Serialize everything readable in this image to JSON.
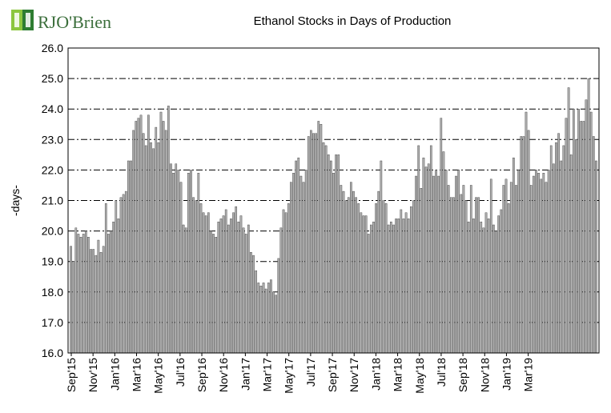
{
  "logo": {
    "text": "RJO'Brien",
    "colors": [
      "#8cc63f",
      "#2e7d32"
    ]
  },
  "chart_data": {
    "type": "bar",
    "title": "Ethanol Stocks in Days of Production",
    "ylabel": "-days-",
    "xlabel": "",
    "ylim": [
      16.0,
      26.0
    ],
    "yticks": [
      "16.0",
      "17.0",
      "18.0",
      "19.0",
      "20.0",
      "21.0",
      "22.0",
      "23.0",
      "24.0",
      "25.0",
      "26.0"
    ],
    "grid": "horizontal dash-dot",
    "bar_color": "#b0b0b0",
    "xticks": [
      "Sep'15",
      "Nov'15",
      "Jan'16",
      "Mar'16",
      "May'16",
      "Jul'16",
      "Sep'16",
      "Nov'16",
      "Jan'17",
      "Mar'17",
      "May'17",
      "Jul'17",
      "Sep'17",
      "Nov'17",
      "Jan'18",
      "Mar'18",
      "May'18",
      "Jul'18",
      "Sep'18",
      "Nov'18",
      "Jan'19",
      "Mar'19"
    ],
    "values": [
      19.5,
      19.0,
      20.1,
      19.9,
      19.8,
      19.9,
      20.0,
      19.8,
      19.4,
      19.4,
      19.2,
      19.7,
      19.3,
      19.5,
      20.9,
      19.9,
      20.0,
      20.3,
      21.0,
      20.4,
      21.1,
      21.2,
      21.3,
      22.3,
      22.3,
      23.3,
      23.6,
      23.7,
      23.8,
      23.2,
      22.8,
      23.8,
      22.9,
      22.7,
      23.4,
      22.9,
      23.9,
      23.6,
      23.3,
      24.1,
      22.2,
      21.9,
      22.2,
      22.0,
      21.6,
      20.2,
      20.1,
      21.9,
      22.0,
      21.1,
      21.0,
      21.9,
      20.9,
      20.6,
      20.5,
      20.6,
      20.0,
      19.9,
      19.8,
      20.3,
      20.4,
      20.5,
      20.7,
      20.2,
      20.4,
      20.6,
      20.8,
      20.3,
      20.5,
      20.1,
      19.9,
      20.2,
      19.3,
      19.2,
      18.7,
      18.3,
      18.2,
      18.3,
      18.1,
      18.3,
      18.4,
      18.0,
      17.9,
      19.1,
      20.1,
      20.7,
      20.6,
      20.9,
      21.6,
      21.9,
      22.3,
      22.4,
      21.8,
      21.6,
      22.0,
      23.1,
      23.3,
      23.2,
      23.2,
      23.6,
      23.5,
      22.9,
      22.8,
      22.5,
      22.3,
      21.9,
      22.5,
      22.5,
      21.5,
      21.3,
      21.0,
      21.1,
      21.6,
      21.3,
      21.1,
      20.9,
      20.6,
      20.5,
      20.5,
      19.9,
      20.2,
      20.3,
      20.9,
      21.3,
      22.3,
      21.0,
      20.9,
      20.2,
      20.3,
      20.2,
      20.4,
      20.4,
      20.7,
      20.4,
      20.6,
      20.4,
      20.8,
      21.0,
      21.8,
      22.8,
      21.4,
      22.4,
      22.1,
      22.2,
      22.8,
      21.8,
      22.0,
      21.8,
      23.7,
      22.6,
      22.0,
      21.5,
      21.1,
      21.1,
      21.8,
      22.0,
      21.2,
      21.5,
      21.0,
      20.3,
      21.5,
      20.4,
      21.1,
      21.1,
      20.3,
      20.1,
      20.6,
      20.4,
      21.7,
      20.2,
      20.0,
      20.5,
      20.7,
      21.5,
      21.7,
      20.9,
      21.6,
      22.4,
      21.5,
      22.0,
      23.1,
      23.1,
      23.9,
      23.3,
      21.5,
      21.8,
      22.0,
      21.9,
      21.7,
      21.9,
      21.6,
      22.0,
      22.8,
      22.2,
      22.9,
      23.2,
      22.3,
      22.8,
      23.7,
      24.7,
      22.5,
      24.0,
      23.0,
      24.0,
      23.6,
      23.6,
      24.3,
      25.0,
      23.9,
      23.1,
      22.3
    ]
  }
}
